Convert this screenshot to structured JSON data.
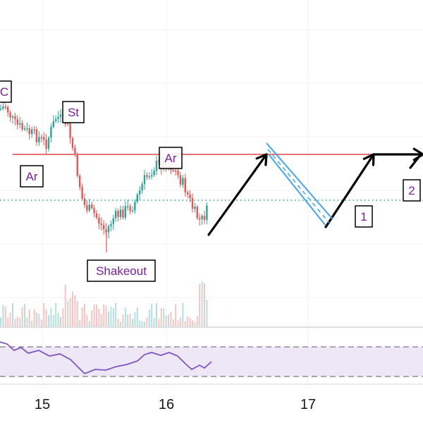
{
  "chart_data": {
    "type": "candlestick",
    "x_ticks": [
      "15",
      "16",
      "17"
    ],
    "colors": {
      "up": "#26a69a",
      "down": "#ef5350",
      "resistance": "#e57373",
      "support": "#26a69a",
      "annotation": "#7b1fa2",
      "arrow": "#000000",
      "channel": "#42a5f5",
      "rsi_band": "#ede7f6",
      "rsi_line": "#7e57c2"
    },
    "annotations": [
      {
        "id": "c",
        "text": "C"
      },
      {
        "id": "st",
        "text": "St"
      },
      {
        "id": "ar1",
        "text": "Ar"
      },
      {
        "id": "ar2",
        "text": "Ar"
      },
      {
        "id": "shakeout",
        "text": "Shakeout"
      },
      {
        "id": "n1",
        "text": "1"
      },
      {
        "id": "n2",
        "text": "2"
      }
    ],
    "grid": true,
    "projection": "up-down-up zigzag arrows from the shakeout lows to the resistance line"
  }
}
